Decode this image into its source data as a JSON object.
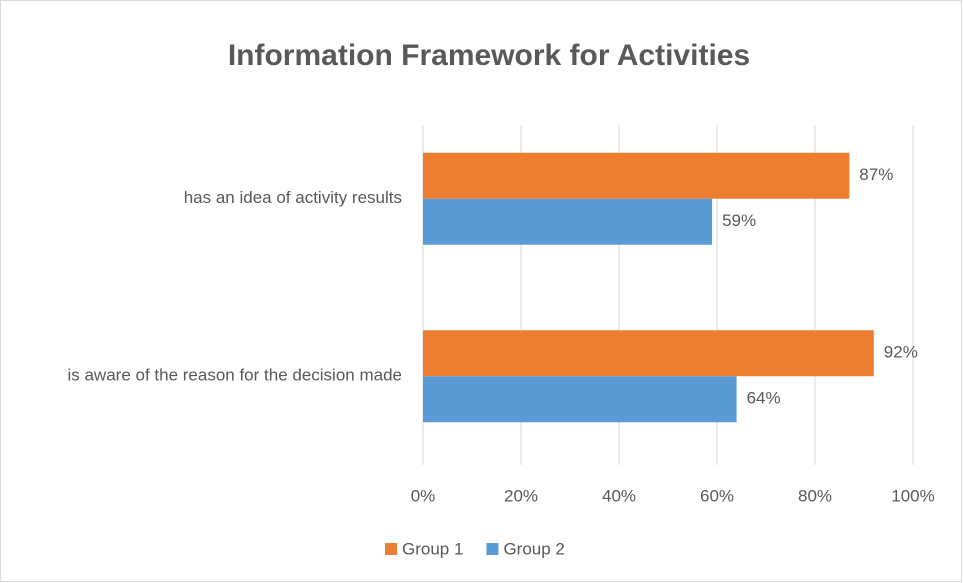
{
  "chart_data": {
    "type": "bar",
    "orientation": "horizontal",
    "title": "Information Framework for Activities",
    "categories": [
      "has an idea of activity results",
      "is aware of the reason for the decision made"
    ],
    "series": [
      {
        "name": "Group 1",
        "color": "#ed7d31",
        "values": [
          87,
          92
        ],
        "value_labels": [
          "87%",
          "92%"
        ]
      },
      {
        "name": "Group 2",
        "color": "#5b9bd5",
        "values": [
          59,
          64
        ],
        "value_labels": [
          "59%",
          "64%"
        ]
      }
    ],
    "xlim": [
      0,
      100
    ],
    "xticks": [
      {
        "value": 0,
        "label": "0%"
      },
      {
        "value": 20,
        "label": "20%"
      },
      {
        "value": 40,
        "label": "40%"
      },
      {
        "value": 60,
        "label": "60%"
      },
      {
        "value": 80,
        "label": "80%"
      },
      {
        "value": 100,
        "label": "100%"
      }
    ],
    "grid": true,
    "legend": "bottom"
  }
}
